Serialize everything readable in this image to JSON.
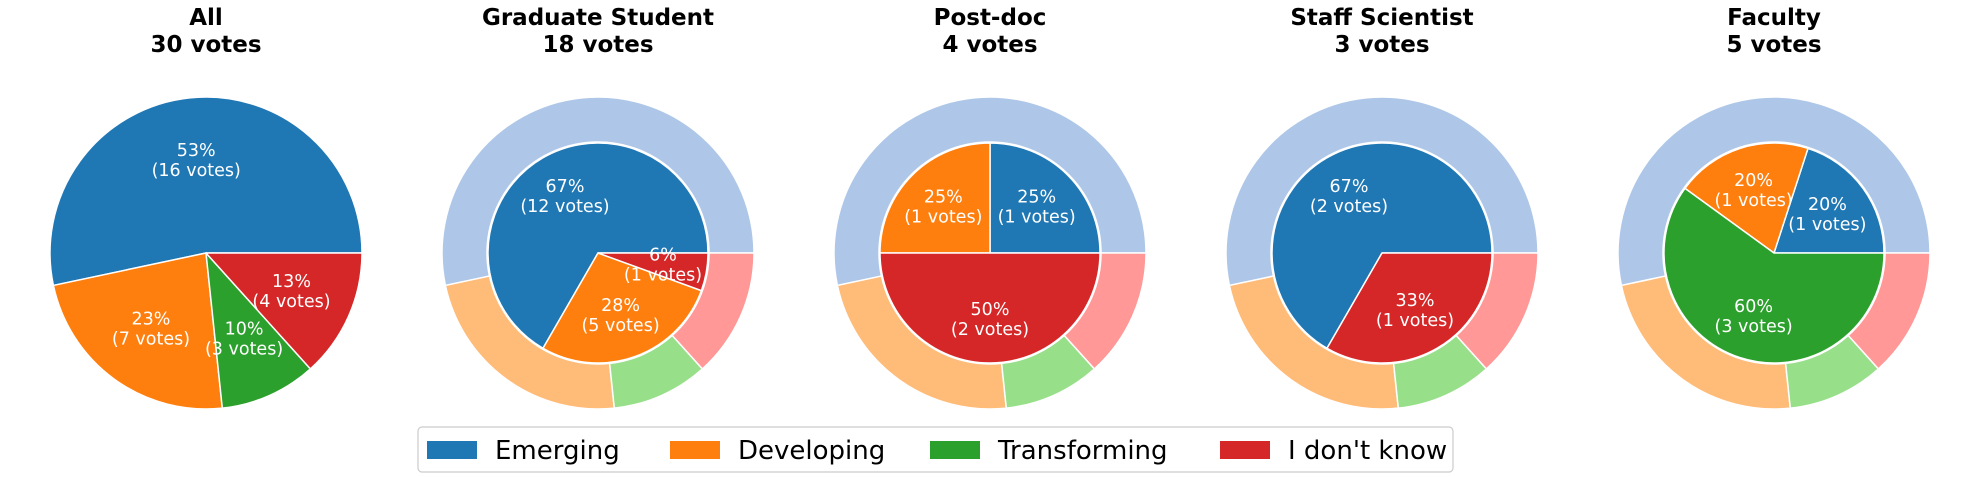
{
  "colors": {
    "Emerging": {
      "inner": "#1f77b4",
      "outer": "#aec7e8"
    },
    "Developing": {
      "inner": "#ff7f0e",
      "outer": "#ffbb78"
    },
    "Transforming": {
      "inner": "#2ca02c",
      "outer": "#98df8a"
    },
    "I don't know": {
      "inner": "#d62728",
      "outer": "#ff9896"
    }
  },
  "legend": {
    "items": [
      "Emerging",
      "Developing",
      "Transforming",
      "I don't know"
    ],
    "placement": "bottom-center"
  },
  "chart_data": [
    {
      "type": "pie",
      "title": "All",
      "subtitle": "30 votes",
      "categories": [
        "Emerging",
        "Developing",
        "Transforming",
        "I don't know"
      ],
      "values": [
        16,
        7,
        3,
        4
      ],
      "labels": [
        "53%\n(16 votes)",
        "23%\n(7 votes)",
        "10%\n(3 votes)",
        "13%\n(4 votes)"
      ]
    },
    {
      "type": "pie",
      "title": "Graduate Student",
      "subtitle": "18 votes",
      "categories": [
        "Emerging",
        "Developing",
        "Transforming",
        "I don't know"
      ],
      "values": [
        12,
        5,
        0,
        1
      ],
      "labels": [
        "67%\n(12 votes)",
        "28%\n(5 votes)",
        "",
        "6%\n(1 votes)"
      ],
      "overall_ring": [
        16,
        7,
        3,
        4
      ]
    },
    {
      "type": "pie",
      "title": "Post-doc",
      "subtitle": "4 votes",
      "categories": [
        "Emerging",
        "Developing",
        "Transforming",
        "I don't know"
      ],
      "values": [
        1,
        1,
        0,
        2
      ],
      "labels": [
        "25%\n(1 votes)",
        "25%\n(1 votes)",
        "",
        "50%\n(2 votes)"
      ],
      "overall_ring": [
        16,
        7,
        3,
        4
      ]
    },
    {
      "type": "pie",
      "title": "Staff Scientist",
      "subtitle": "3 votes",
      "categories": [
        "Emerging",
        "Developing",
        "Transforming",
        "I don't know"
      ],
      "values": [
        2,
        0,
        0,
        1
      ],
      "labels": [
        "67%\n(2 votes)",
        "",
        "",
        "33%\n(1 votes)"
      ],
      "overall_ring": [
        16,
        7,
        3,
        4
      ]
    },
    {
      "type": "pie",
      "title": "Faculty",
      "subtitle": "5 votes",
      "categories": [
        "Emerging",
        "Developing",
        "Transforming",
        "I don't know"
      ],
      "values": [
        1,
        1,
        3,
        0
      ],
      "labels": [
        "20%\n(1 votes)",
        "20%\n(1 votes)",
        "60%\n(3 votes)",
        ""
      ],
      "overall_ring": [
        16,
        7,
        3,
        4
      ]
    }
  ]
}
